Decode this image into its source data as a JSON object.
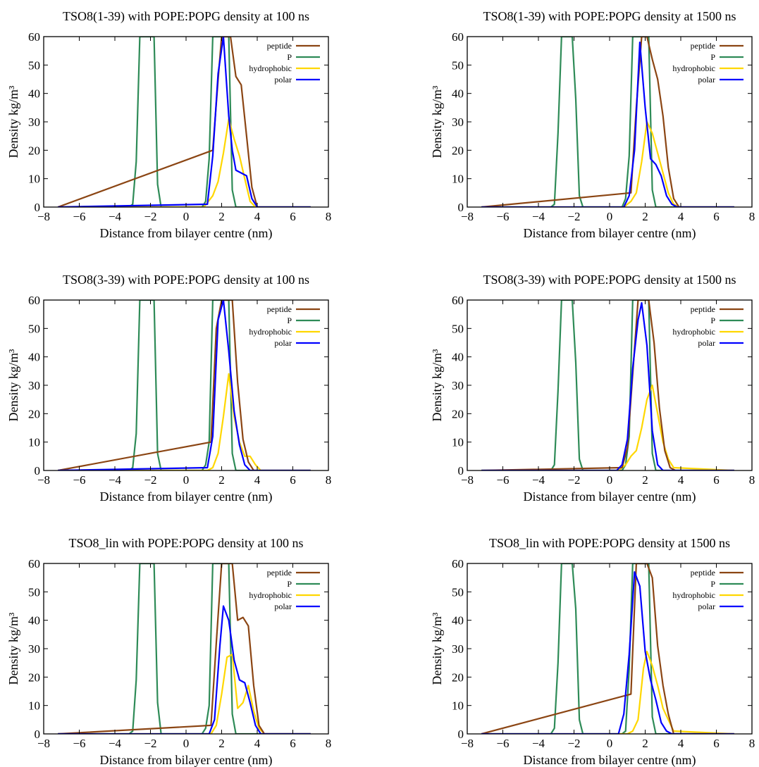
{
  "figure": {
    "xlabel": "Distance from bilayer centre (nm)",
    "ylabel": "Density kg/m³",
    "xlim": [
      -8,
      8
    ],
    "ylim": [
      0,
      60
    ],
    "xticks": [
      -8,
      -6,
      -4,
      -2,
      0,
      2,
      4,
      6,
      8
    ],
    "xtick_labels": [
      "−8",
      "−6",
      "−4",
      "−2",
      "0",
      "2",
      "4",
      "6",
      "8"
    ],
    "yticks": [
      0,
      10,
      20,
      30,
      40,
      50,
      60
    ],
    "legend": [
      "peptide",
      "P",
      "hydrophobic",
      "polar"
    ],
    "colors": {
      "peptide": "#8b4513",
      "P": "#2e8b57",
      "hydrophobic": "#ffd700",
      "polar": "#0000ff"
    }
  },
  "chart_data": [
    {
      "type": "line",
      "title": "TSO8(1-39) with POPE:POPG density at 100 ns",
      "series": [
        {
          "name": "peptide",
          "x": [
            -7.2,
            1.5,
            1.8,
            2.0,
            2.2,
            2.5,
            2.8,
            3.1,
            3.4,
            3.7,
            4.0,
            7.0
          ],
          "y": [
            0,
            20,
            45,
            60,
            60,
            60,
            46,
            43,
            25,
            7,
            0,
            0
          ]
        },
        {
          "name": "P",
          "x": [
            -7.2,
            -3.2,
            -3.0,
            -2.8,
            -2.6,
            -2.4,
            -2.2,
            -2.0,
            -1.8,
            -1.6,
            -1.4,
            0.9,
            1.1,
            1.3,
            1.5,
            1.8,
            2.1,
            2.4,
            2.6,
            2.8,
            7.0
          ],
          "y": [
            0,
            0,
            1,
            16,
            60,
            60,
            60,
            60,
            60,
            8,
            0,
            0,
            2,
            17,
            60,
            60,
            60,
            60,
            6,
            0,
            0
          ]
        },
        {
          "name": "hydrophobic",
          "x": [
            -7.2,
            1.0,
            1.5,
            1.8,
            2.1,
            2.4,
            2.7,
            3.0,
            3.3,
            3.6,
            3.9,
            7.0
          ],
          "y": [
            0,
            0,
            4,
            9,
            19,
            31,
            24,
            18,
            10,
            2,
            0,
            0
          ]
        },
        {
          "name": "polar",
          "x": [
            -7.2,
            1.2,
            1.5,
            1.8,
            2.1,
            2.4,
            2.6,
            2.8,
            3.1,
            3.4,
            3.7,
            4.0,
            7.0
          ],
          "y": [
            0,
            1,
            18,
            47,
            60,
            32,
            20,
            13,
            12,
            11,
            3,
            0,
            0
          ]
        }
      ]
    },
    {
      "type": "line",
      "title": "TSO8(1-39) with POPE:POPG density at 1500 ns",
      "series": [
        {
          "name": "peptide",
          "x": [
            -7.2,
            1.2,
            1.5,
            1.8,
            2.1,
            2.4,
            2.7,
            3.0,
            3.3,
            3.6,
            3.9,
            7.0
          ],
          "y": [
            0,
            5,
            35,
            60,
            60,
            52,
            45,
            32,
            14,
            3,
            0,
            0
          ]
        },
        {
          "name": "P",
          "x": [
            -7.2,
            -3.3,
            -3.1,
            -2.9,
            -2.7,
            -2.5,
            -2.3,
            -2.1,
            -1.9,
            -1.7,
            -1.5,
            0.7,
            0.9,
            1.1,
            1.3,
            1.6,
            1.9,
            2.2,
            2.4,
            2.6,
            7.0
          ],
          "y": [
            0,
            0,
            1,
            26,
            60,
            60,
            60,
            60,
            38,
            4,
            0,
            0,
            3,
            18,
            60,
            60,
            60,
            60,
            6,
            0,
            0
          ]
        },
        {
          "name": "hydrophobic",
          "x": [
            -7.2,
            0.8,
            1.2,
            1.5,
            1.8,
            2.1,
            2.4,
            2.7,
            3.0,
            3.3,
            3.6,
            3.9,
            7.0
          ],
          "y": [
            0,
            0,
            2,
            5,
            16,
            30,
            26,
            19,
            12,
            5,
            1,
            0,
            0
          ]
        },
        {
          "name": "polar",
          "x": [
            -7.2,
            0.8,
            1.1,
            1.4,
            1.7,
            2.0,
            2.3,
            2.6,
            2.9,
            3.2,
            3.5,
            3.8,
            7.0
          ],
          "y": [
            0,
            0,
            4,
            20,
            58,
            35,
            17,
            15,
            11,
            4,
            1,
            0,
            0
          ]
        }
      ]
    },
    {
      "type": "line",
      "title": "TSO8(3-39) with POPE:POPG density at 100 ns",
      "series": [
        {
          "name": "peptide",
          "x": [
            -7.2,
            1.4,
            1.7,
            2.0,
            2.3,
            2.6,
            2.9,
            3.2,
            3.5,
            3.8,
            7.0
          ],
          "y": [
            0,
            10,
            50,
            60,
            60,
            60,
            31,
            11,
            3,
            0,
            0
          ]
        },
        {
          "name": "P",
          "x": [
            -7.2,
            -3.2,
            -3.0,
            -2.8,
            -2.6,
            -2.4,
            -2.2,
            -2.0,
            -1.8,
            -1.6,
            -1.4,
            0.9,
            1.1,
            1.3,
            1.5,
            1.8,
            2.1,
            2.4,
            2.6,
            2.8,
            7.0
          ],
          "y": [
            0,
            0,
            1,
            13,
            60,
            60,
            60,
            60,
            60,
            6,
            0,
            0,
            2,
            10,
            60,
            60,
            60,
            60,
            6,
            0,
            0
          ]
        },
        {
          "name": "hydrophobic",
          "x": [
            -7.2,
            1.2,
            1.5,
            1.8,
            2.1,
            2.4,
            2.7,
            3.0,
            3.3,
            3.6,
            3.9,
            4.2,
            7.0
          ],
          "y": [
            0,
            0,
            1,
            6,
            19,
            34,
            19,
            10,
            5,
            5,
            2,
            0,
            0
          ]
        },
        {
          "name": "polar",
          "x": [
            -7.2,
            1.2,
            1.5,
            1.8,
            2.1,
            2.4,
            2.7,
            3.0,
            3.3,
            3.6,
            7.0
          ],
          "y": [
            0,
            1,
            12,
            53,
            60,
            42,
            21,
            9,
            2,
            0,
            0
          ]
        }
      ]
    },
    {
      "type": "line",
      "title": "TSO8(3-39) with POPE:POPG density at 1500 ns",
      "series": [
        {
          "name": "peptide",
          "x": [
            -7.2,
            0.7,
            1.0,
            1.3,
            1.6,
            1.9,
            2.2,
            2.5,
            2.8,
            3.1,
            3.4,
            3.7,
            7.0
          ],
          "y": [
            0,
            1,
            8,
            34,
            60,
            60,
            60,
            45,
            22,
            7,
            1,
            0,
            0
          ]
        },
        {
          "name": "P",
          "x": [
            -7.2,
            -3.3,
            -3.1,
            -2.9,
            -2.7,
            -2.5,
            -2.3,
            -2.1,
            -1.9,
            -1.7,
            -1.5,
            0.7,
            0.9,
            1.1,
            1.3,
            1.6,
            1.9,
            2.2,
            2.4,
            2.6,
            7.0
          ],
          "y": [
            0,
            0,
            2,
            28,
            60,
            60,
            60,
            60,
            38,
            4,
            0,
            0,
            2,
            12,
            60,
            60,
            60,
            60,
            6,
            0,
            0
          ]
        },
        {
          "name": "hydrophobic",
          "x": [
            -7.2,
            0.5,
            0.9,
            1.2,
            1.5,
            1.8,
            2.1,
            2.4,
            2.7,
            3.0,
            3.3,
            3.6,
            7.0
          ],
          "y": [
            0,
            0,
            2,
            5,
            7,
            15,
            25,
            30,
            20,
            10,
            4,
            1,
            0
          ]
        },
        {
          "name": "polar",
          "x": [
            -7.2,
            0.4,
            0.7,
            1.0,
            1.3,
            1.6,
            1.8,
            2.1,
            2.4,
            2.7,
            3.0,
            3.3,
            7.0
          ],
          "y": [
            0,
            0,
            2,
            11,
            36,
            53,
            59,
            44,
            14,
            2,
            0,
            0,
            0
          ]
        }
      ]
    },
    {
      "type": "line",
      "title": "TSO8_lin with POPE:POPG density at 100 ns",
      "series": [
        {
          "name": "peptide",
          "x": [
            -7.2,
            1.4,
            1.7,
            2.0,
            2.3,
            2.6,
            2.9,
            3.2,
            3.5,
            3.8,
            4.1,
            4.4,
            7.0
          ],
          "y": [
            0,
            3,
            32,
            60,
            60,
            60,
            40,
            41,
            38,
            17,
            3,
            0,
            0
          ]
        },
        {
          "name": "P",
          "x": [
            -7.2,
            -3.2,
            -3.0,
            -2.8,
            -2.6,
            -2.4,
            -2.2,
            -2.0,
            -1.8,
            -1.6,
            -1.4,
            0.9,
            1.1,
            1.3,
            1.5,
            1.8,
            2.1,
            2.4,
            2.6,
            2.8,
            7.0
          ],
          "y": [
            0,
            0,
            1,
            19,
            60,
            60,
            60,
            60,
            60,
            11,
            0,
            0,
            2,
            10,
            60,
            60,
            60,
            60,
            7,
            0,
            0
          ]
        },
        {
          "name": "hydrophobic",
          "x": [
            -7.2,
            1.4,
            1.7,
            2.0,
            2.3,
            2.6,
            2.9,
            3.2,
            3.5,
            3.8,
            4.1,
            4.4,
            7.0
          ],
          "y": [
            0,
            0,
            3,
            14,
            27,
            28,
            9,
            11,
            17,
            8,
            2,
            0,
            0
          ]
        },
        {
          "name": "polar",
          "x": [
            -7.2,
            1.3,
            1.6,
            1.9,
            2.1,
            2.4,
            2.7,
            3.0,
            3.3,
            3.6,
            3.9,
            4.2,
            7.0
          ],
          "y": [
            0,
            0,
            5,
            31,
            45,
            40,
            26,
            19,
            18,
            11,
            3,
            0,
            0
          ]
        }
      ]
    },
    {
      "type": "line",
      "title": "TSO8_lin with POPE:POPG density at 1500 ns",
      "series": [
        {
          "name": "peptide",
          "x": [
            -7.2,
            1.2,
            1.5,
            1.8,
            2.1,
            2.4,
            2.7,
            3.0,
            3.3,
            3.6,
            7.0
          ],
          "y": [
            0,
            14,
            60,
            60,
            60,
            55,
            31,
            17,
            7,
            0,
            0
          ]
        },
        {
          "name": "P",
          "x": [
            -7.2,
            -3.3,
            -3.1,
            -2.9,
            -2.7,
            -2.5,
            -2.3,
            -2.1,
            -1.9,
            -1.7,
            -1.5,
            0.7,
            0.9,
            1.1,
            1.3,
            1.6,
            1.9,
            2.2,
            2.4,
            2.6,
            7.0
          ],
          "y": [
            0,
            0,
            2,
            25,
            60,
            60,
            60,
            60,
            44,
            5,
            0,
            0,
            1,
            23,
            60,
            60,
            60,
            60,
            6,
            0,
            0
          ]
        },
        {
          "name": "hydrophobic",
          "x": [
            -7.2,
            1.0,
            1.3,
            1.6,
            1.9,
            2.1,
            2.4,
            2.7,
            3.0,
            3.3,
            3.6,
            7.0
          ],
          "y": [
            0,
            0,
            1,
            5,
            23,
            29,
            24,
            17,
            9,
            5,
            1,
            0
          ]
        },
        {
          "name": "polar",
          "x": [
            -7.2,
            0.5,
            0.8,
            1.1,
            1.4,
            1.7,
            2.0,
            2.3,
            2.6,
            2.9,
            3.2,
            3.5,
            7.0
          ],
          "y": [
            0,
            0,
            7,
            28,
            57,
            52,
            29,
            19,
            12,
            4,
            1,
            0,
            0
          ]
        }
      ]
    }
  ]
}
